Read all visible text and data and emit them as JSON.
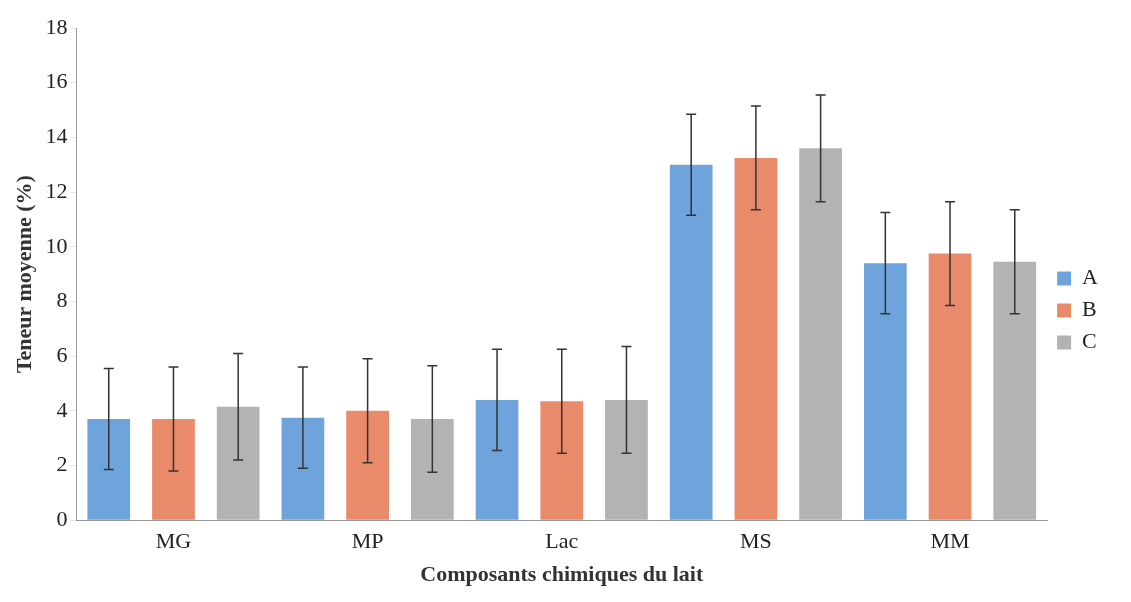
{
  "chart_data": {
    "type": "bar",
    "xlabel": "Composants chimiques du lait",
    "ylabel": "Teneur moyenne (%)",
    "categories": [
      "MG",
      "MP",
      "Lac",
      "MS",
      "MM"
    ],
    "series": [
      {
        "name": "A",
        "color": "#6fa3dc",
        "values": [
          3.7,
          3.75,
          4.4,
          13.0,
          9.4
        ],
        "errors": [
          1.85,
          1.85,
          1.85,
          1.85,
          1.85
        ]
      },
      {
        "name": "B",
        "color": "#e98a6b",
        "values": [
          3.7,
          4.0,
          4.35,
          13.25,
          9.75
        ],
        "errors": [
          1.9,
          1.9,
          1.9,
          1.9,
          1.9
        ]
      },
      {
        "name": "C",
        "color": "#b3b3b3",
        "values": [
          4.15,
          3.7,
          4.4,
          13.6,
          9.45
        ],
        "errors": [
          1.95,
          1.95,
          1.95,
          1.95,
          1.9
        ]
      }
    ],
    "ylim": [
      0,
      18
    ],
    "yticks": [
      0,
      2,
      4,
      6,
      8,
      10,
      12,
      14,
      16,
      18
    ],
    "grid": false,
    "legend": "right"
  }
}
